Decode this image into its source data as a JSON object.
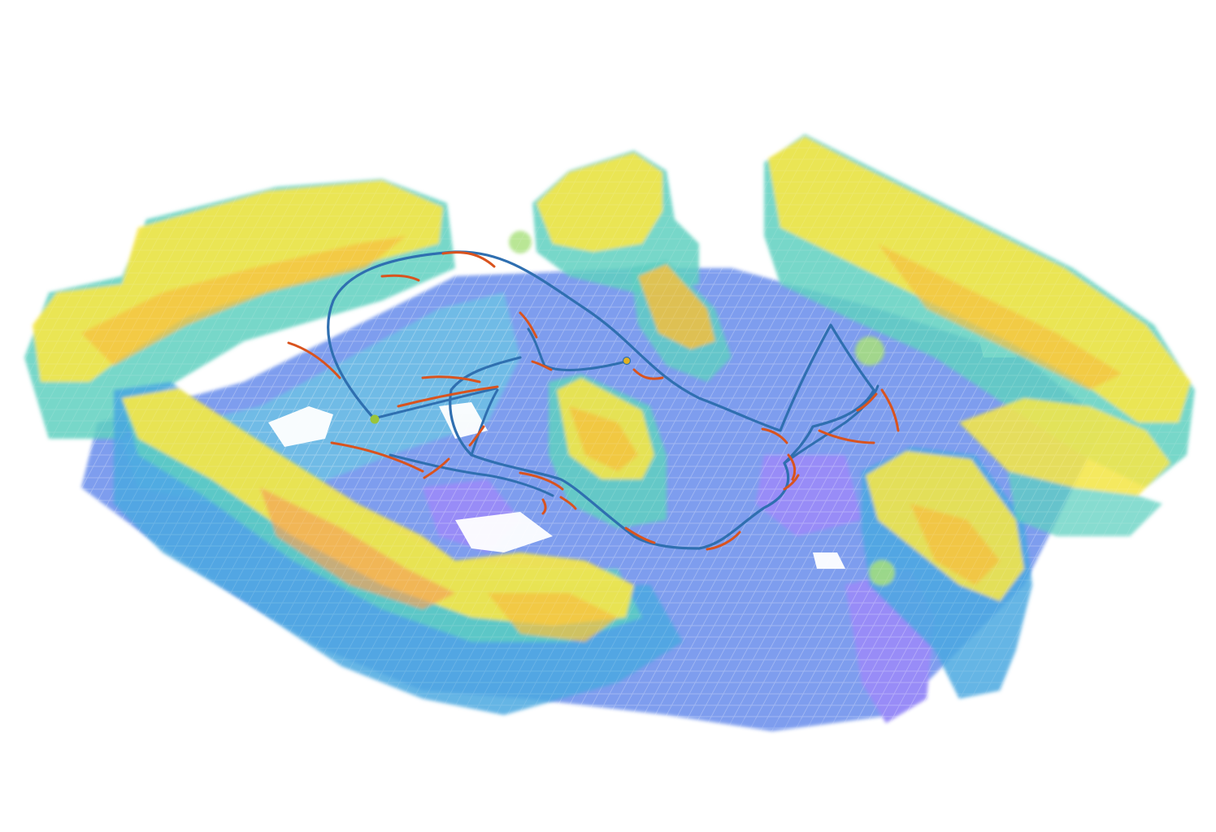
{
  "scene": {
    "kind": "3d-voxel-occupancy-map-with-trajectories",
    "background": "#ffffff",
    "colormap": [
      "#7b6cf6",
      "#4f7de6",
      "#4aa8e0",
      "#5fd0c0",
      "#a8e07a",
      "#f4e64a",
      "#f5c040",
      "#f5a25a"
    ],
    "trajectory_colors": {
      "path": "#2f6fb0",
      "segments": "#d9531e"
    },
    "marker_colors": [
      "#9ac43a",
      "#e0b020"
    ]
  }
}
